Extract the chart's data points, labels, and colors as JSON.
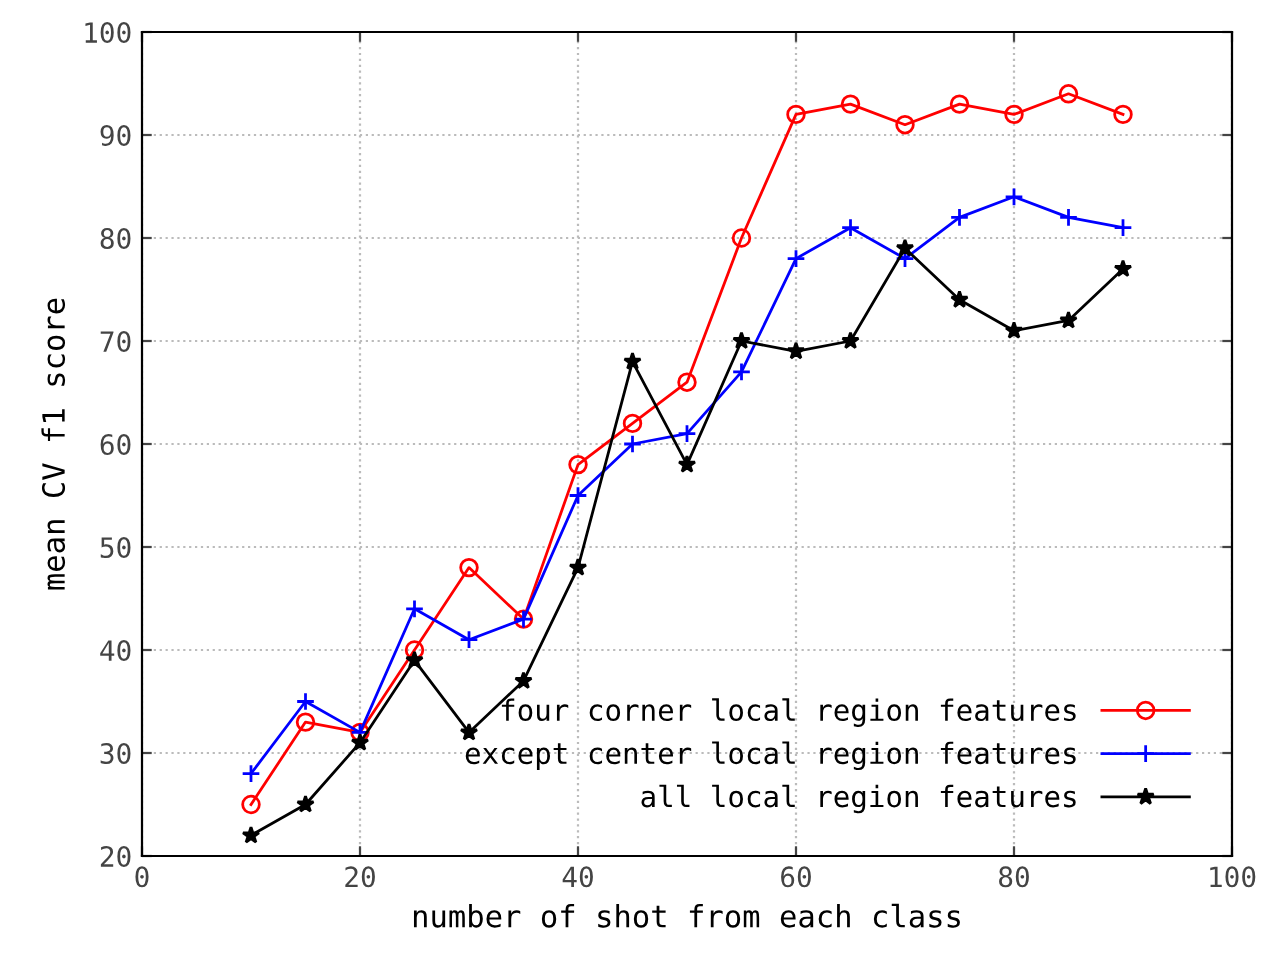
{
  "chart_data": {
    "type": "line",
    "xlabel": "number of shot from each class",
    "ylabel": "mean CV f1 score",
    "x": [
      10,
      15,
      20,
      25,
      30,
      35,
      40,
      45,
      50,
      55,
      60,
      65,
      70,
      75,
      80,
      85,
      90
    ],
    "series": [
      {
        "name": "four corner local region features",
        "color": "#ff0000",
        "marker": "circle",
        "values": [
          25,
          33,
          32,
          40,
          48,
          43,
          58,
          62,
          66,
          80,
          92,
          93,
          91,
          93,
          92,
          94,
          92
        ]
      },
      {
        "name": "except center local region features",
        "color": "#0000ff",
        "marker": "cross",
        "values": [
          28,
          35,
          32,
          44,
          41,
          43,
          55,
          60,
          61,
          67,
          78,
          81,
          78,
          82,
          84,
          82,
          81
        ]
      },
      {
        "name": "all local region features",
        "color": "#000000",
        "marker": "star",
        "values": [
          22,
          25,
          31,
          39,
          32,
          37,
          48,
          68,
          58,
          70,
          69,
          70,
          79,
          74,
          71,
          72,
          77
        ]
      }
    ],
    "xlim": [
      0,
      100
    ],
    "xticks": [
      0,
      20,
      40,
      60,
      80,
      100
    ],
    "ylim": [
      20,
      100
    ],
    "yticks": [
      20,
      30,
      40,
      50,
      60,
      70,
      80,
      90,
      100
    ],
    "grid": true,
    "legend": "bottom right"
  }
}
